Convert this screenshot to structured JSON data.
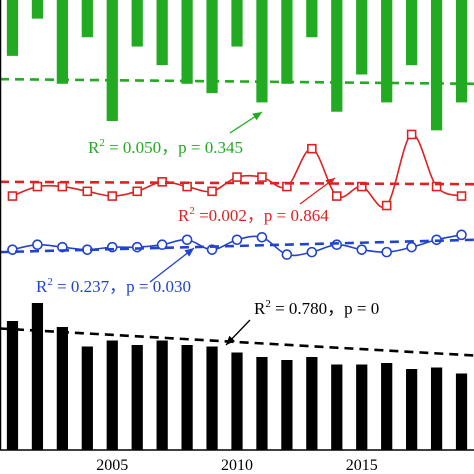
{
  "chart_data": {
    "type": "bar",
    "xlim": [
      2000.5,
      2019.5
    ],
    "x_tick_labels": [
      "2005",
      "2010",
      "2015"
    ],
    "x_tick_values": [
      2005,
      2010,
      2015
    ],
    "years": [
      2001,
      2002,
      2003,
      2004,
      2005,
      2006,
      2007,
      2008,
      2009,
      2010,
      2011,
      2012,
      2013,
      2014,
      2015,
      2016,
      2017,
      2018,
      2019
    ],
    "grid": false,
    "legend": "none",
    "series": [
      {
        "kind": "bar-down",
        "color": "#22aa22",
        "values": [
          0.6,
          0.2,
          0.9,
          0.4,
          1.3,
          0.5,
          0.7,
          0.9,
          1.0,
          0.5,
          1.1,
          0.9,
          0.4,
          1.2,
          0.8,
          1.1,
          0.7,
          1.4,
          1.1
        ],
        "ylim": [
          0,
          1.45
        ],
        "trend": [
          0.85,
          0.9
        ],
        "r2_label": "R",
        "r2_value": " = 0.050，p = 0.345"
      },
      {
        "kind": "line",
        "color": "#dd2222",
        "values": [
          0.2,
          0.4,
          0.4,
          0.3,
          0.2,
          0.3,
          0.5,
          0.4,
          0.3,
          0.6,
          0.6,
          0.4,
          1.2,
          0.2,
          0.4,
          0.0,
          1.5,
          0.4,
          0.2
        ],
        "ylim": [
          -0.2,
          1.7
        ],
        "trend": [
          0.5,
          0.45
        ],
        "r2_label": "R",
        "r2_value": " =0.002，p = 0.864"
      },
      {
        "kind": "line",
        "color": "#2244cc",
        "values": [
          0.5,
          0.7,
          0.6,
          0.5,
          0.6,
          0.6,
          0.7,
          0.9,
          0.5,
          0.9,
          1.0,
          0.3,
          0.4,
          0.7,
          0.5,
          0.4,
          0.6,
          0.9,
          1.1
        ],
        "ylim": [
          0,
          1.7
        ],
        "trend": [
          0.4,
          0.9
        ],
        "r2_label": "R",
        "r2_value": " = 0.237，p = 0.030"
      },
      {
        "kind": "bar-up",
        "color": "#000000",
        "values": [
          8.6,
          9.8,
          8.2,
          6.9,
          7.3,
          7.0,
          7.3,
          7.0,
          6.9,
          6.5,
          6.2,
          6.0,
          6.2,
          5.7,
          5.7,
          5.8,
          5.4,
          5.5,
          5.1
        ],
        "ylim": [
          0,
          10
        ],
        "trend": [
          8.1,
          6.3
        ],
        "r2_label": "R",
        "r2_value": " = 0.780，p = 0"
      }
    ]
  }
}
